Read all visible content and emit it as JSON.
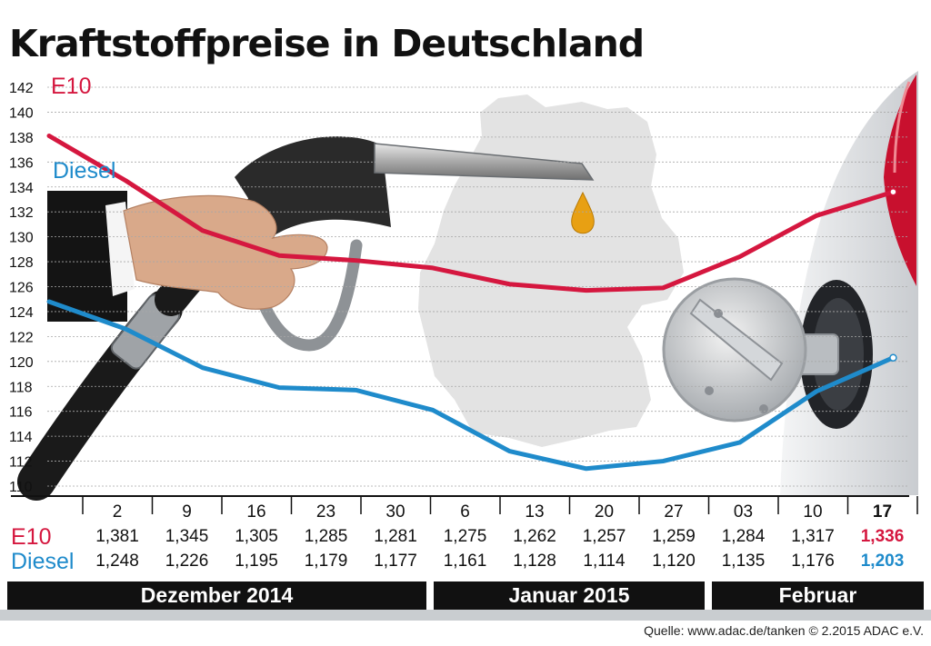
{
  "title": "Kraftstoffpreise in Deutschland",
  "chart_data": {
    "type": "line",
    "title": "Kraftstoffpreise in Deutschland",
    "ylim": [
      110,
      142
    ],
    "yticks": [
      110,
      112,
      114,
      116,
      118,
      120,
      122,
      124,
      126,
      128,
      130,
      132,
      134,
      136,
      138,
      140,
      142
    ],
    "grid": true,
    "categories": [
      "2",
      "9",
      "16",
      "23",
      "30",
      "6",
      "13",
      "20",
      "27",
      "03",
      "10",
      "17"
    ],
    "series": [
      {
        "name": "E10",
        "color": "#d5173f",
        "values": [
          138.1,
          134.5,
          130.5,
          128.5,
          128.1,
          127.5,
          126.2,
          125.7,
          125.9,
          128.4,
          131.7,
          133.6
        ]
      },
      {
        "name": "Diesel",
        "color": "#1f8bcb",
        "values": [
          124.8,
          122.6,
          119.5,
          117.9,
          117.7,
          116.1,
          112.8,
          111.4,
          112.0,
          113.5,
          117.6,
          120.3
        ]
      }
    ],
    "table": {
      "rows": [
        {
          "label": "E10",
          "color": "#d5173f",
          "values": [
            "1,381",
            "1,345",
            "1,305",
            "1,285",
            "1,281",
            "1,275",
            "1,262",
            "1,257",
            "1,259",
            "1,284",
            "1,317",
            "1,336"
          ]
        },
        {
          "label": "Diesel",
          "color": "#1f8bcb",
          "values": [
            "1,248",
            "1,226",
            "1,195",
            "1,179",
            "1,177",
            "1,161",
            "1,128",
            "1,114",
            "1,120",
            "1,135",
            "1,176",
            "1,203"
          ]
        }
      ]
    },
    "months": [
      "Dezember 2014",
      "Januar 2015",
      "Februar"
    ]
  },
  "source": "Quelle: www.adac.de/tanken   © 2.2015  ADAC e.V.",
  "colors": {
    "map": "#e3e3e3",
    "grid": "#a8a8a8",
    "band": "#111111",
    "hose": "#1a1a1a",
    "car": "#e4e6e8",
    "taillight": "#c8102e"
  }
}
